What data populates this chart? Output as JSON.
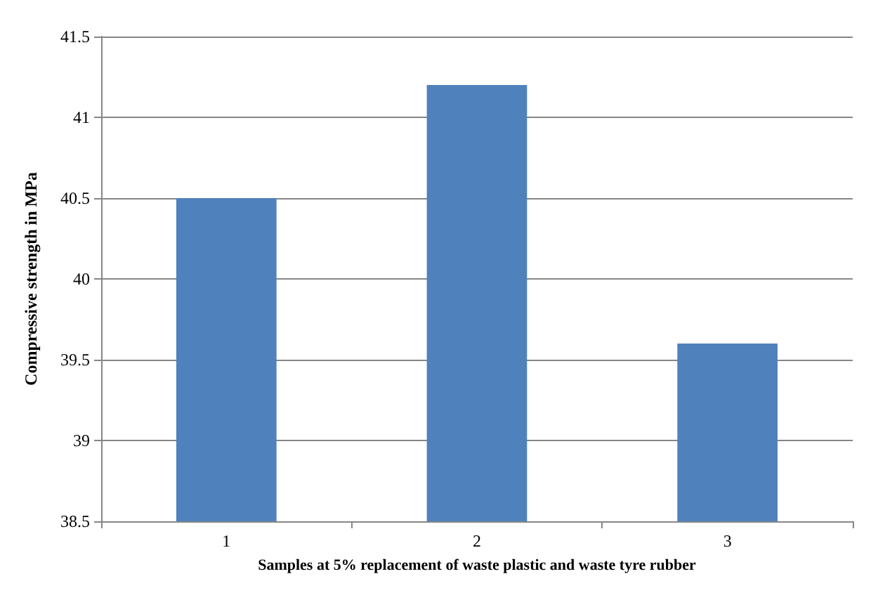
{
  "chart_data": {
    "type": "bar",
    "xlabel": "Samples at 5% replacement of waste plastic and waste tyre rubber",
    "ylabel": "Compressive strength in MPa",
    "categories": [
      "1",
      "2",
      "3"
    ],
    "values": [
      40.5,
      41.2,
      39.6
    ],
    "color": "#4f81bd",
    "ylim": [
      38.5,
      41.5
    ],
    "yticks": [
      38.5,
      39,
      39.5,
      40,
      40.5,
      41,
      41.5
    ],
    "grid": "y"
  }
}
